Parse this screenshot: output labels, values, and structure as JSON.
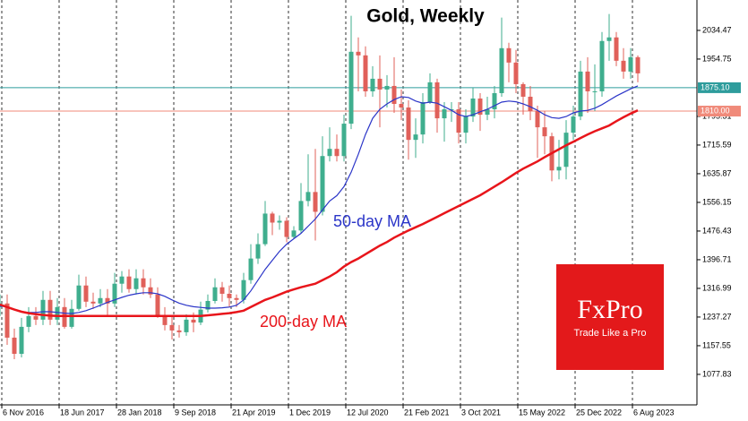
{
  "chart_data": {
    "type": "candlestick",
    "title": "Gold, Weekly",
    "x": [
      "2016-10-30",
      "2016-11-27",
      "2016-12-25",
      "2017-01-22",
      "2017-02-19",
      "2017-03-19",
      "2017-04-16",
      "2017-05-14",
      "2017-06-11",
      "2017-07-09",
      "2017-08-06",
      "2017-09-03",
      "2017-10-01",
      "2017-10-29",
      "2017-11-26",
      "2017-12-24",
      "2018-01-21",
      "2018-02-18",
      "2018-03-18",
      "2018-04-15",
      "2018-05-13",
      "2018-06-10",
      "2018-07-08",
      "2018-08-05",
      "2018-09-02",
      "2018-09-30",
      "2018-10-28",
      "2018-11-25",
      "2018-12-23",
      "2019-01-20",
      "2019-02-17",
      "2019-03-17",
      "2019-04-14",
      "2019-05-12",
      "2019-06-09",
      "2019-07-07",
      "2019-08-04",
      "2019-09-01",
      "2019-09-29",
      "2019-10-27",
      "2019-11-24",
      "2019-12-22",
      "2020-01-19",
      "2020-02-16",
      "2020-03-15",
      "2020-04-12",
      "2020-05-10",
      "2020-06-07",
      "2020-07-05",
      "2020-08-02",
      "2020-08-30",
      "2020-09-27",
      "2020-10-25",
      "2020-11-22",
      "2020-12-20",
      "2021-01-17",
      "2021-02-14",
      "2021-03-14",
      "2021-04-11",
      "2021-05-09",
      "2021-06-06",
      "2021-07-04",
      "2021-08-01",
      "2021-08-29",
      "2021-09-26",
      "2021-10-24",
      "2021-11-21",
      "2021-12-19",
      "2022-01-16",
      "2022-02-13",
      "2022-03-13",
      "2022-04-10",
      "2022-05-08",
      "2022-06-05",
      "2022-07-03",
      "2022-07-31",
      "2022-08-28",
      "2022-09-25",
      "2022-10-23",
      "2022-11-20",
      "2022-12-18",
      "2023-01-15",
      "2023-02-12",
      "2023-03-12",
      "2023-04-09",
      "2023-05-07",
      "2023-06-04",
      "2023-07-02",
      "2023-07-30",
      "2023-08-27"
    ],
    "open": [
      1265,
      1275,
      1180,
      1135,
      1210,
      1240,
      1230,
      1285,
      1230,
      1265,
      1210,
      1260,
      1325,
      1280,
      1275,
      1290,
      1275,
      1330,
      1350,
      1315,
      1345,
      1320,
      1300,
      1240,
      1215,
      1200,
      1195,
      1230,
      1222,
      1258,
      1282,
      1320,
      1302,
      1290,
      1285,
      1340,
      1400,
      1440,
      1525,
      1500,
      1505,
      1460,
      1478,
      1560,
      1585,
      1530,
      1685,
      1705,
      1685,
      1775,
      1975,
      1965,
      1865,
      1900,
      1870,
      1880,
      1830,
      1820,
      1730,
      1745,
      1835,
      1890,
      1790,
      1815,
      1815,
      1750,
      1795,
      1845,
      1800,
      1815,
      1860,
      1985,
      1945,
      1885,
      1850,
      1810,
      1765,
      1740,
      1645,
      1655,
      1750,
      1795,
      1920,
      1865,
      1865,
      2005,
      2015,
      1950,
      1920,
      1960
    ],
    "high": [
      1300,
      1300,
      1205,
      1235,
      1265,
      1265,
      1310,
      1310,
      1290,
      1290,
      1285,
      1355,
      1350,
      1305,
      1315,
      1315,
      1360,
      1365,
      1370,
      1370,
      1370,
      1345,
      1320,
      1265,
      1240,
      1215,
      1245,
      1250,
      1280,
      1300,
      1345,
      1335,
      1325,
      1300,
      1360,
      1440,
      1470,
      1560,
      1530,
      1520,
      1515,
      1490,
      1610,
      1690,
      1705,
      1740,
      1765,
      1745,
      1800,
      2075,
      2015,
      1990,
      1935,
      1965,
      1910,
      1960,
      1870,
      1840,
      1790,
      1860,
      1915,
      1900,
      1835,
      1835,
      1835,
      1815,
      1875,
      1860,
      1850,
      1880,
      2070,
      2000,
      1980,
      1890,
      1880,
      1825,
      1810,
      1750,
      1730,
      1785,
      1825,
      1950,
      1960,
      1940,
      2030,
      2080,
      2030,
      1985,
      1985,
      1965
    ],
    "low": [
      1240,
      1160,
      1120,
      1125,
      1195,
      1215,
      1215,
      1215,
      1215,
      1205,
      1205,
      1255,
      1265,
      1260,
      1265,
      1240,
      1265,
      1305,
      1305,
      1300,
      1300,
      1290,
      1235,
      1200,
      1175,
      1180,
      1185,
      1195,
      1215,
      1250,
      1275,
      1280,
      1265,
      1265,
      1275,
      1330,
      1385,
      1435,
      1465,
      1480,
      1445,
      1455,
      1470,
      1545,
      1450,
      1520,
      1670,
      1670,
      1670,
      1760,
      1865,
      1850,
      1850,
      1765,
      1820,
      1805,
      1785,
      1675,
      1680,
      1720,
      1830,
      1750,
      1725,
      1780,
      1720,
      1720,
      1780,
      1755,
      1785,
      1790,
      1850,
      1890,
      1860,
      1800,
      1785,
      1680,
      1690,
      1615,
      1620,
      1620,
      1730,
      1785,
      1805,
      1810,
      1850,
      1950,
      1935,
      1900,
      1900,
      1890
    ],
    "close": [
      1275,
      1180,
      1135,
      1210,
      1240,
      1230,
      1285,
      1230,
      1265,
      1210,
      1260,
      1325,
      1280,
      1275,
      1290,
      1275,
      1330,
      1350,
      1315,
      1345,
      1320,
      1300,
      1240,
      1215,
      1200,
      1195,
      1230,
      1222,
      1258,
      1282,
      1320,
      1302,
      1290,
      1285,
      1340,
      1400,
      1440,
      1525,
      1500,
      1505,
      1460,
      1478,
      1560,
      1585,
      1530,
      1685,
      1705,
      1685,
      1775,
      1975,
      1965,
      1865,
      1900,
      1870,
      1880,
      1830,
      1820,
      1730,
      1745,
      1835,
      1890,
      1790,
      1815,
      1815,
      1750,
      1795,
      1845,
      1800,
      1815,
      1860,
      1985,
      1945,
      1885,
      1850,
      1810,
      1765,
      1740,
      1645,
      1655,
      1750,
      1795,
      1920,
      1865,
      1865,
      2005,
      2015,
      1950,
      1920,
      1960,
      1915
    ],
    "up_color": "#3fae8e",
    "down_color": "#e0605a",
    "series": [
      {
        "name": "50-day MA",
        "color": "#2b35c8",
        "values": [
          1268,
          1265,
          1258,
          1252,
          1250,
          1250,
          1252,
          1252,
          1250,
          1248,
          1247,
          1250,
          1255,
          1262,
          1270,
          1278,
          1285,
          1292,
          1298,
          1302,
          1305,
          1305,
          1302,
          1295,
          1285,
          1276,
          1270,
          1266,
          1264,
          1262,
          1262,
          1263,
          1265,
          1270,
          1285,
          1310,
          1340,
          1370,
          1395,
          1420,
          1440,
          1455,
          1470,
          1490,
          1510,
          1535,
          1560,
          1575,
          1600,
          1640,
          1690,
          1745,
          1790,
          1815,
          1830,
          1842,
          1850,
          1848,
          1838,
          1832,
          1835,
          1832,
          1822,
          1812,
          1800,
          1795,
          1800,
          1808,
          1815,
          1825,
          1835,
          1838,
          1836,
          1830,
          1822,
          1812,
          1800,
          1792,
          1790,
          1795,
          1805,
          1810,
          1812,
          1818,
          1828,
          1840,
          1852,
          1862,
          1872,
          1880
        ]
      },
      {
        "name": "200-day MA",
        "color": "#e8151b",
        "values": [
          1272,
          1265,
          1258,
          1252,
          1248,
          1245,
          1243,
          1241,
          1240,
          1240,
          1240,
          1240,
          1240,
          1240,
          1240,
          1240,
          1240,
          1240,
          1240,
          1240,
          1240,
          1240,
          1240,
          1240,
          1240,
          1240,
          1240,
          1240,
          1240,
          1242,
          1244,
          1246,
          1248,
          1251,
          1255,
          1265,
          1275,
          1285,
          1292,
          1300,
          1308,
          1314,
          1320,
          1325,
          1330,
          1340,
          1350,
          1362,
          1378,
          1390,
          1400,
          1412,
          1424,
          1436,
          1446,
          1458,
          1468,
          1478,
          1487,
          1496,
          1506,
          1516,
          1526,
          1536,
          1546,
          1556,
          1566,
          1576,
          1588,
          1600,
          1612,
          1625,
          1638,
          1650,
          1660,
          1670,
          1682,
          1693,
          1704,
          1715,
          1725,
          1735,
          1745,
          1754,
          1762,
          1770,
          1782,
          1793,
          1803,
          1812
        ]
      }
    ],
    "xlim": [
      "2016-10-30",
      "2024-04-14"
    ],
    "xticks": [
      {
        "value": "2016-11-06",
        "label": "6 Nov 2016"
      },
      {
        "value": "2017-06-18",
        "label": "18 Jun 2017"
      },
      {
        "value": "2018-01-28",
        "label": "28 Jan 2018"
      },
      {
        "value": "2018-09-09",
        "label": "9 Sep 2018"
      },
      {
        "value": "2019-04-21",
        "label": "21 Apr 2019"
      },
      {
        "value": "2019-12-01",
        "label": "1 Dec 2019"
      },
      {
        "value": "2020-07-12",
        "label": "12 Jul 2020"
      },
      {
        "value": "2021-02-21",
        "label": "21 Feb 2021"
      },
      {
        "value": "2021-10-03",
        "label": "3 Oct 2021"
      },
      {
        "value": "2022-05-15",
        "label": "15 May 2022"
      },
      {
        "value": "2022-12-25",
        "label": "25 Dec 2022"
      },
      {
        "value": "2023-08-06",
        "label": "6 Aug 2023"
      }
    ],
    "ylim": [
      993,
      2119
    ],
    "yticks": [
      1077.83,
      1157.55,
      1237.27,
      1316.99,
      1396.71,
      1476.43,
      1556.15,
      1635.87,
      1715.59,
      1795.31,
      1954.75,
      2034.47
    ],
    "hlines": [
      {
        "value": 1875.1,
        "label": "1875.10",
        "color": "#2e9c9c"
      },
      {
        "value": 1810,
        "label": "1810.00",
        "color": "#f08a7a"
      }
    ],
    "grid": true,
    "logo": {
      "brand": "FxPro",
      "tagline": "Trade Like a Pro"
    }
  }
}
